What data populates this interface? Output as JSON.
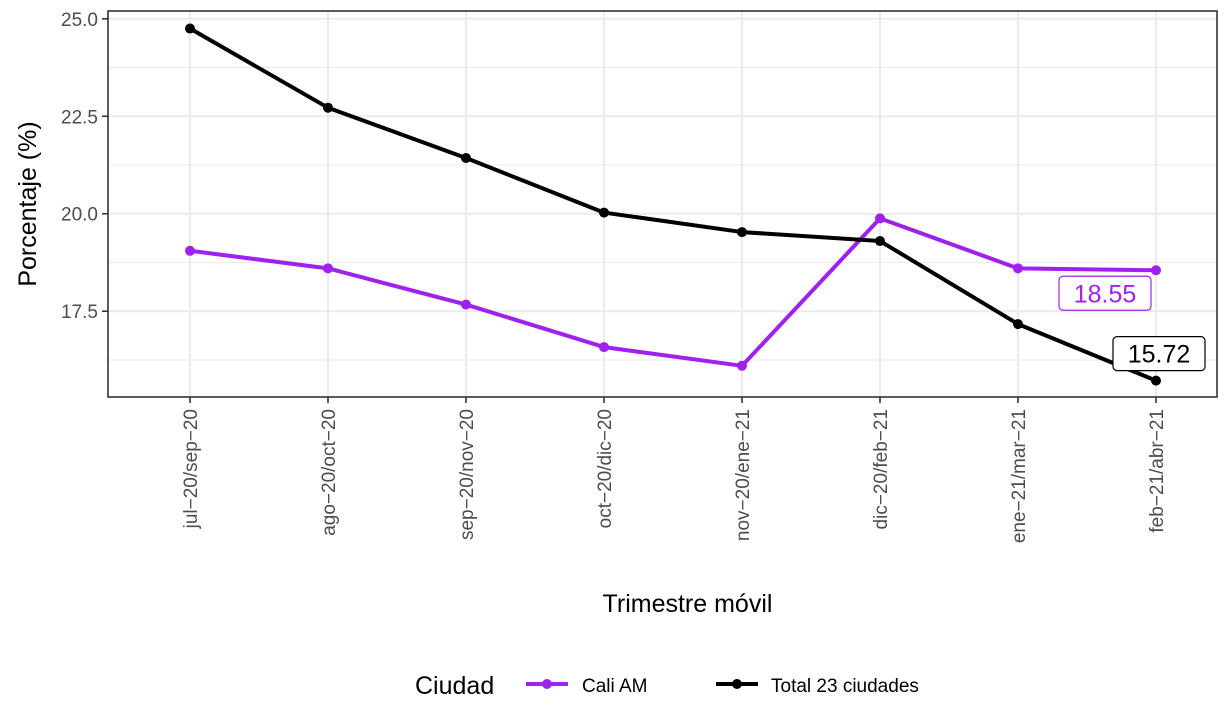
{
  "chart_data": {
    "type": "line",
    "title": "",
    "xlabel": "Trimestre móvil",
    "ylabel": "Porcentaje (%)",
    "categories": [
      "jul−20/sep−20",
      "ago−20/oct−20",
      "sep−20/nov−20",
      "oct−20/dic−20",
      "nov−20/ene−21",
      "dic−20/feb−21",
      "ene−21/mar−21",
      "feb−21/abr−21"
    ],
    "y_ticks": [
      "17.5",
      "20.0",
      "22.5",
      "25.0"
    ],
    "ylim": [
      15.3,
      25.2
    ],
    "grid": true,
    "legend": {
      "title": "Ciudad",
      "position": "bottom"
    },
    "series": [
      {
        "name": "Cali AM",
        "color": "#A020F0",
        "values": [
          19.05,
          18.6,
          17.67,
          16.58,
          16.1,
          19.88,
          18.6,
          18.55
        ],
        "end_label": "18.55"
      },
      {
        "name": "Total 23 ciudades",
        "color": "#000000",
        "values": [
          24.75,
          22.72,
          21.43,
          20.03,
          19.53,
          19.3,
          17.17,
          15.72
        ],
        "end_label": "15.72"
      }
    ]
  }
}
